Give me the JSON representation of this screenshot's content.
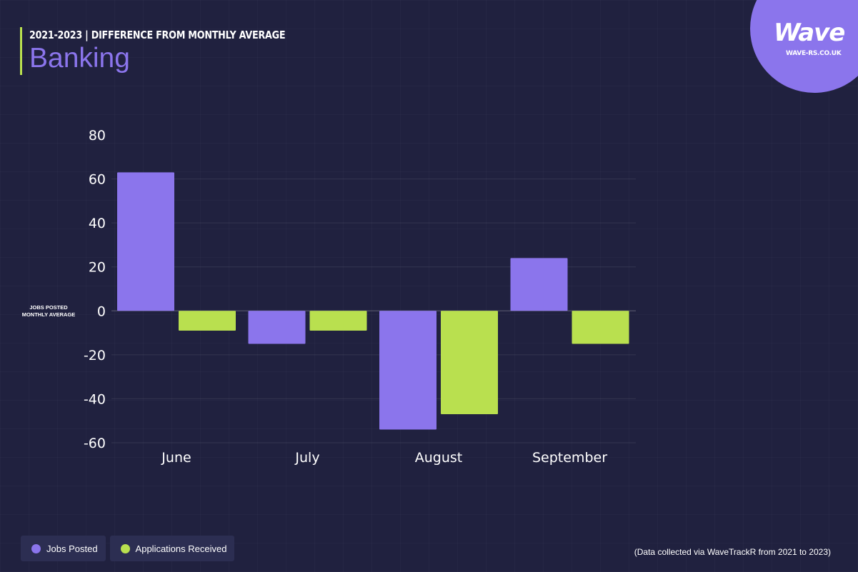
{
  "header": {
    "subtitle": "2021-2023 | DIFFERENCE FROM MONTHLY AVERAGE",
    "title": "Banking"
  },
  "logo": {
    "text": "Wave",
    "url": "WAVE-RS.CO.UK"
  },
  "colors": {
    "background": "#20213f",
    "jobs": "#8b75ec",
    "applications": "#b9e04f",
    "accent": "#8b75ec"
  },
  "chart_data": {
    "type": "bar",
    "categories": [
      "June",
      "July",
      "August",
      "September"
    ],
    "series": [
      {
        "name": "Jobs Posted",
        "values": [
          63,
          -15,
          -54,
          24
        ]
      },
      {
        "name": "Applications Received",
        "values": [
          -9,
          -9,
          -47,
          -15
        ]
      }
    ],
    "ylabel": "JOBS POSTED MONTHLY AVERAGE",
    "ylabel_lines": [
      "JOBS POSTED",
      "MONTHLY AVERAGE"
    ],
    "ylim": [
      -60,
      80
    ],
    "yticks": [
      80,
      60,
      40,
      20,
      0,
      -20,
      -40,
      -60
    ],
    "grid": true,
    "legend_position": "bottom-left"
  },
  "legend": [
    {
      "label": "Jobs Posted"
    },
    {
      "label": "Applications Received"
    }
  ],
  "footnote": "(Data collected via WaveTrackR from 2021 to 2023)"
}
